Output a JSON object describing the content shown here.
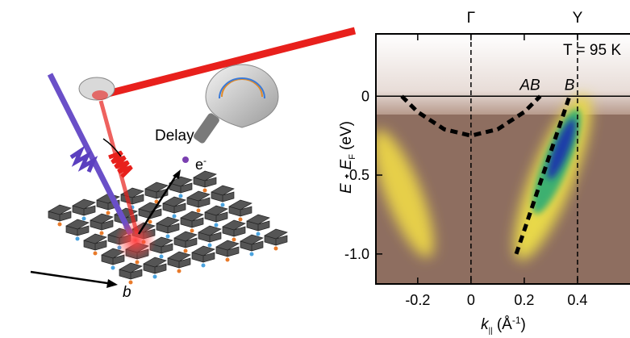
{
  "left_panel": {
    "delay_label": "Delay",
    "electron_label": "e",
    "electron_charge": "-",
    "axis_label": "b"
  },
  "chart_data": {
    "type": "heatmap",
    "x_label": {
      "symbol": "k",
      "sub": "||",
      "unit_open": "(Å",
      "unit_sup": "-1",
      "unit_close": ")"
    },
    "y_label": {
      "symbol": "E - E",
      "sub": "F",
      "unit": "(eV)"
    },
    "xlim": [
      -0.357,
      0.597
    ],
    "ylim": [
      -1.19,
      0.395
    ],
    "xticks": [
      -0.2,
      0,
      0.2,
      0.4
    ],
    "yticks": [
      {
        "value": -1.0,
        "label": "-1.0"
      },
      -0.5,
      0
    ],
    "top_ticks": [
      {
        "value": 0,
        "label": "Γ"
      },
      {
        "value": 0.4,
        "label": "Y"
      }
    ],
    "hline": 0,
    "temperature_label": "T = 95 K",
    "curves": [
      {
        "name": "AB",
        "x": [
          -0.26,
          -0.2,
          -0.1,
          0,
          0.1,
          0.2,
          0.26
        ],
        "y": [
          0,
          -0.1,
          -0.21,
          -0.25,
          -0.21,
          -0.1,
          0
        ]
      },
      {
        "name": "B",
        "x": [
          0.17,
          0.37
        ],
        "y": [
          -1.0,
          0.0
        ]
      }
    ]
  }
}
